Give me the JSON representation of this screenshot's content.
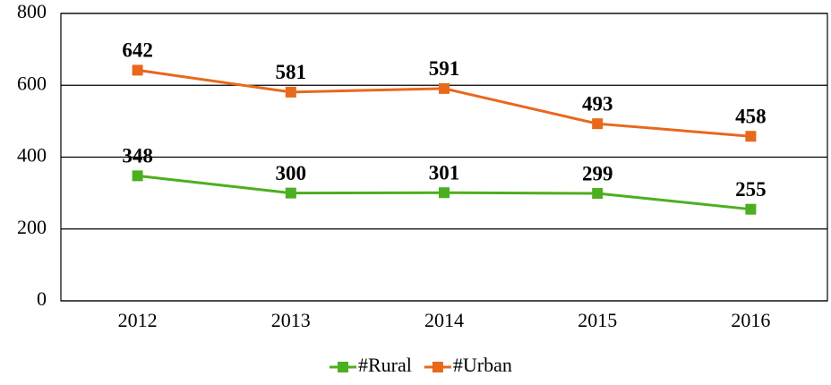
{
  "chart_data": {
    "type": "line",
    "categories": [
      "2012",
      "2013",
      "2014",
      "2015",
      "2016"
    ],
    "series": [
      {
        "name": "#Rural",
        "color": "#4caf1f",
        "values": [
          348,
          300,
          301,
          299,
          255
        ]
      },
      {
        "name": "#Urban",
        "color": "#e8681c",
        "values": [
          642,
          581,
          591,
          493,
          458
        ]
      }
    ],
    "ylim": [
      0,
      800
    ],
    "yticks": [
      0,
      200,
      400,
      600,
      800
    ],
    "grid": true,
    "legend": "bottom"
  }
}
